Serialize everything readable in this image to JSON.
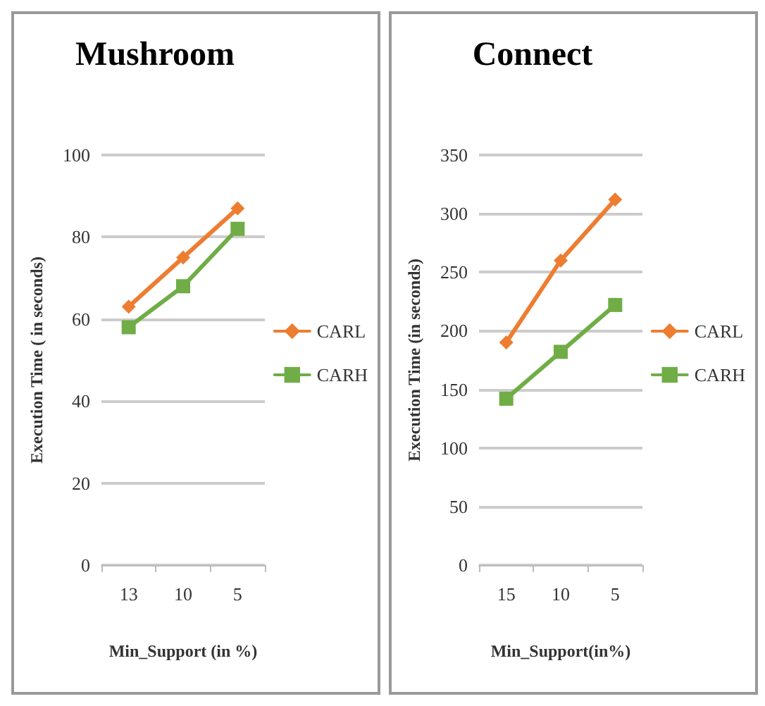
{
  "chart_data": [
    {
      "type": "line",
      "title": "Mushroom",
      "xlabel": "Min_Support (in %)",
      "ylabel": "Execution Time ( in seconds)",
      "categories": [
        "13",
        "10",
        "5"
      ],
      "series": [
        {
          "name": "CARL",
          "color": "#ed7d31",
          "values": [
            63,
            75,
            87
          ],
          "marker": "diamond"
        },
        {
          "name": "CARH",
          "color": "#70ad47",
          "values": [
            58,
            68,
            82
          ],
          "marker": "square"
        }
      ],
      "ylim": [
        0,
        100
      ],
      "yticks": [
        0,
        20,
        40,
        60,
        80,
        100
      ],
      "grid": "y",
      "legend": "right"
    },
    {
      "type": "line",
      "title": "Connect",
      "xlabel": "Min_Support(in%)",
      "ylabel": "Execution Time (in seconds)",
      "categories": [
        "15",
        "10",
        "5"
      ],
      "series": [
        {
          "name": "CARL",
          "color": "#ed7d31",
          "values": [
            190,
            260,
            312
          ],
          "marker": "diamond"
        },
        {
          "name": "CARH",
          "color": "#70ad47",
          "values": [
            142,
            182,
            222
          ],
          "marker": "square"
        }
      ],
      "ylim": [
        0,
        350
      ],
      "yticks": [
        0,
        50,
        100,
        150,
        200,
        250,
        300,
        350
      ],
      "grid": "y",
      "legend": "right"
    }
  ]
}
